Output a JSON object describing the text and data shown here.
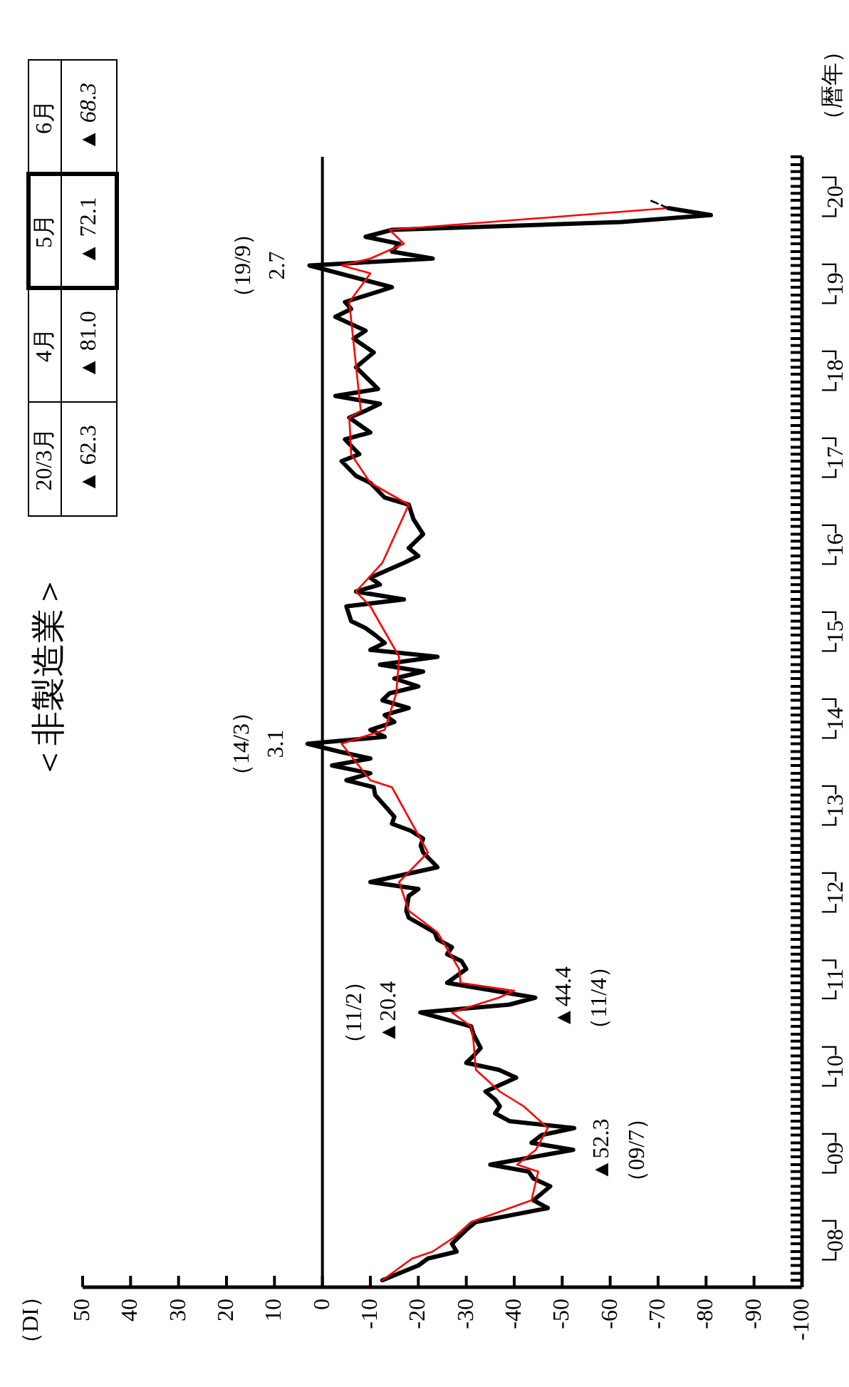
{
  "chart_data": {
    "type": "line",
    "title": "＜非製造業＞",
    "ylabel": "（暦年）",
    "xlim": [
      50,
      -100
    ],
    "ylim": [
      7.92,
      20.92
    ],
    "xticks": [
      50,
      40,
      30,
      20,
      10,
      0,
      -10,
      -20,
      -30,
      -40,
      -50,
      -60,
      -70,
      -80,
      -90,
      -100
    ],
    "yticks": [
      {
        "value": 8.46,
        "label": "└08┘"
      },
      {
        "value": 9.46,
        "label": "└09┘"
      },
      {
        "value": 10.46,
        "label": "└10┘"
      },
      {
        "value": 11.46,
        "label": "└11┘"
      },
      {
        "value": 12.46,
        "label": "└12┘"
      },
      {
        "value": 13.46,
        "label": "└13┘"
      },
      {
        "value": 14.46,
        "label": "└14┘"
      },
      {
        "value": 15.46,
        "label": "└15┘"
      },
      {
        "value": 16.46,
        "label": "└16┘"
      },
      {
        "value": 17.46,
        "label": "└17┘"
      },
      {
        "value": 18.46,
        "label": "└18┘"
      },
      {
        "value": 19.46,
        "label": "└19┘"
      },
      {
        "value": 20.46,
        "label": "└20┘"
      },
      {
        "value": 8,
        "label": null
      },
      {
        "value": 8.08,
        "label": null
      },
      {
        "value": 8.17,
        "label": null
      },
      {
        "value": 8.25,
        "label": null
      },
      {
        "value": 8.33,
        "label": null
      },
      {
        "value": 8.42,
        "label": null
      },
      {
        "value": 8.5,
        "label": null
      },
      {
        "value": 8.58,
        "label": null
      },
      {
        "value": 8.67,
        "label": null
      },
      {
        "value": 8.75,
        "label": null
      },
      {
        "value": 8.83,
        "label": null
      },
      {
        "value": 8.92,
        "label": null
      },
      {
        "value": 9,
        "label": null
      },
      {
        "value": 9.08,
        "label": null
      },
      {
        "value": 9.17,
        "label": null
      },
      {
        "value": 9.25,
        "label": null
      },
      {
        "value": 9.33,
        "label": null
      },
      {
        "value": 9.42,
        "label": null
      },
      {
        "value": 9.5,
        "label": null
      },
      {
        "value": 9.58,
        "label": null
      },
      {
        "value": 9.67,
        "label": null
      },
      {
        "value": 9.75,
        "label": null
      },
      {
        "value": 9.83,
        "label": null
      },
      {
        "value": 9.92,
        "label": null
      },
      {
        "value": 10,
        "label": null
      },
      {
        "value": 10.08,
        "label": null
      },
      {
        "value": 10.17,
        "label": null
      },
      {
        "value": 10.25,
        "label": null
      },
      {
        "value": 10.33,
        "label": null
      },
      {
        "value": 10.42,
        "label": null
      },
      {
        "value": 10.5,
        "label": null
      },
      {
        "value": 10.58,
        "label": null
      },
      {
        "value": 10.67,
        "label": null
      },
      {
        "value": 10.75,
        "label": null
      },
      {
        "value": 10.83,
        "label": null
      },
      {
        "value": 10.92,
        "label": null
      },
      {
        "value": 11,
        "label": null
      },
      {
        "value": 11.08,
        "label": null
      },
      {
        "value": 11.17,
        "label": null
      },
      {
        "value": 11.25,
        "label": null
      },
      {
        "value": 11.33,
        "label": null
      },
      {
        "value": 11.42,
        "label": null
      },
      {
        "value": 11.5,
        "label": null
      },
      {
        "value": 11.58,
        "label": null
      },
      {
        "value": 11.67,
        "label": null
      },
      {
        "value": 11.75,
        "label": null
      },
      {
        "value": 11.83,
        "label": null
      },
      {
        "value": 11.92,
        "label": null
      },
      {
        "value": 12,
        "label": null
      },
      {
        "value": 12.08,
        "label": null
      },
      {
        "value": 12.17,
        "label": null
      },
      {
        "value": 12.25,
        "label": null
      },
      {
        "value": 12.33,
        "label": null
      },
      {
        "value": 12.42,
        "label": null
      },
      {
        "value": 12.5,
        "label": null
      },
      {
        "value": 12.58,
        "label": null
      },
      {
        "value": 12.67,
        "label": null
      },
      {
        "value": 12.75,
        "label": null
      },
      {
        "value": 12.83,
        "label": null
      },
      {
        "value": 12.92,
        "label": null
      },
      {
        "value": 13,
        "label": null
      },
      {
        "value": 13.08,
        "label": null
      },
      {
        "value": 13.17,
        "label": null
      },
      {
        "value": 13.25,
        "label": null
      },
      {
        "value": 13.33,
        "label": null
      },
      {
        "value": 13.42,
        "label": null
      },
      {
        "value": 13.5,
        "label": null
      },
      {
        "value": 13.58,
        "label": null
      },
      {
        "value": 13.67,
        "label": null
      },
      {
        "value": 13.75,
        "label": null
      },
      {
        "value": 13.83,
        "label": null
      },
      {
        "value": 13.92,
        "label": null
      },
      {
        "value": 14,
        "label": null
      },
      {
        "value": 14.08,
        "label": null
      },
      {
        "value": 14.17,
        "label": null
      },
      {
        "value": 14.25,
        "label": null
      },
      {
        "value": 14.33,
        "label": null
      },
      {
        "value": 14.42,
        "label": null
      },
      {
        "value": 14.5,
        "label": null
      },
      {
        "value": 14.58,
        "label": null
      },
      {
        "value": 14.67,
        "label": null
      },
      {
        "value": 14.75,
        "label": null
      },
      {
        "value": 14.83,
        "label": null
      },
      {
        "value": 14.92,
        "label": null
      },
      {
        "value": 15,
        "label": null
      },
      {
        "value": 15.08,
        "label": null
      },
      {
        "value": 15.17,
        "label": null
      },
      {
        "value": 15.25,
        "label": null
      },
      {
        "value": 15.33,
        "label": null
      },
      {
        "value": 15.42,
        "label": null
      },
      {
        "value": 15.5,
        "label": null
      },
      {
        "value": 15.58,
        "label": null
      },
      {
        "value": 15.67,
        "label": null
      },
      {
        "value": 15.75,
        "label": null
      },
      {
        "value": 15.83,
        "label": null
      },
      {
        "value": 15.92,
        "label": null
      },
      {
        "value": 16,
        "label": null
      },
      {
        "value": 16.08,
        "label": null
      },
      {
        "value": 16.17,
        "label": null
      },
      {
        "value": 16.25,
        "label": null
      },
      {
        "value": 16.33,
        "label": null
      },
      {
        "value": 16.42,
        "label": null
      },
      {
        "value": 16.5,
        "label": null
      },
      {
        "value": 16.58,
        "label": null
      },
      {
        "value": 16.67,
        "label": null
      },
      {
        "value": 16.75,
        "label": null
      },
      {
        "value": 16.83,
        "label": null
      },
      {
        "value": 16.92,
        "label": null
      },
      {
        "value": 17,
        "label": null
      },
      {
        "value": 17.08,
        "label": null
      },
      {
        "value": 17.17,
        "label": null
      },
      {
        "value": 17.25,
        "label": null
      },
      {
        "value": 17.33,
        "label": null
      },
      {
        "value": 17.42,
        "label": null
      },
      {
        "value": 17.5,
        "label": null
      },
      {
        "value": 17.58,
        "label": null
      },
      {
        "value": 17.67,
        "label": null
      },
      {
        "value": 17.75,
        "label": null
      },
      {
        "value": 17.83,
        "label": null
      },
      {
        "value": 17.92,
        "label": null
      },
      {
        "value": 18,
        "label": null
      },
      {
        "value": 18.08,
        "label": null
      },
      {
        "value": 18.17,
        "label": null
      },
      {
        "value": 18.25,
        "label": null
      },
      {
        "value": 18.33,
        "label": null
      },
      {
        "value": 18.42,
        "label": null
      },
      {
        "value": 18.5,
        "label": null
      },
      {
        "value": 18.58,
        "label": null
      },
      {
        "value": 18.67,
        "label": null
      },
      {
        "value": 18.75,
        "label": null
      },
      {
        "value": 18.83,
        "label": null
      },
      {
        "value": 18.92,
        "label": null
      },
      {
        "value": 19,
        "label": null
      },
      {
        "value": 19.08,
        "label": null
      },
      {
        "value": 19.17,
        "label": null
      },
      {
        "value": 19.25,
        "label": null
      },
      {
        "value": 19.33,
        "label": null
      },
      {
        "value": 19.42,
        "label": null
      },
      {
        "value": 19.5,
        "label": null
      },
      {
        "value": 19.58,
        "label": null
      },
      {
        "value": 19.67,
        "label": null
      },
      {
        "value": 19.75,
        "label": null
      },
      {
        "value": 19.83,
        "label": null
      },
      {
        "value": 19.92,
        "label": null
      },
      {
        "value": 20,
        "label": null
      },
      {
        "value": 20.08,
        "label": null
      },
      {
        "value": 20.17,
        "label": null
      },
      {
        "value": 20.25,
        "label": null
      },
      {
        "value": 20.33,
        "label": null
      },
      {
        "value": 20.42,
        "label": null
      },
      {
        "value": 20.5,
        "label": null
      },
      {
        "value": 20.58,
        "label": null
      },
      {
        "value": 20.67,
        "label": null
      },
      {
        "value": 20.75,
        "label": null
      },
      {
        "value": 20.83,
        "label": null
      },
      {
        "value": 20.92,
        "label": null
      }
    ],
    "ref_lines": [
      {
        "axis": "x",
        "value": 0,
        "color": "#000000"
      }
    ],
    "series": [
      {
        "color": "#000000",
        "x": [
          -12.5,
          -16,
          -20,
          -22,
          -28,
          -27,
          -30,
          -32,
          -47,
          -44,
          -47.5,
          -44,
          -43,
          -35,
          -52.3,
          -43.6,
          -45.7,
          -52.5,
          -39,
          -36,
          -37,
          -36,
          -34,
          -40.4,
          -36.8,
          -30,
          -31.5,
          -33,
          -31.5,
          -31,
          -20.4,
          -39,
          -44.4,
          -26,
          -30,
          -29,
          -26,
          -27,
          -24,
          -23.4,
          -18,
          -17.5,
          -18,
          -20,
          -10,
          -24,
          -21,
          -20.5,
          -21,
          -18.4,
          -14.5,
          -15,
          -13.6,
          -11,
          -10.7,
          -5,
          -10,
          -2,
          -10,
          -3.5,
          3.1,
          -13,
          -10,
          -15,
          -13,
          -18,
          -12.5,
          -14,
          -20,
          -15,
          -21,
          -12,
          -24,
          -10,
          -13,
          -11,
          -9,
          -6,
          -5,
          -17,
          -7,
          -12,
          -10,
          -17,
          -20,
          -18,
          -21,
          -19,
          -18,
          -13,
          -11.6,
          -10,
          -7,
          -4,
          -7.7,
          -4.7,
          -10,
          -5.6,
          -9,
          -12,
          -2.7,
          -11.6,
          -7,
          -10.7,
          -6.5,
          -9,
          -2.7,
          -6,
          -4.7,
          -14.5,
          -9,
          2.7,
          -23,
          -14.5,
          -16,
          -9,
          -14.5,
          -62.3,
          -81.0,
          -72.1
        ],
        "values": [
          8,
          8.08,
          8.17,
          8.25,
          8.33,
          8.42,
          8.58,
          8.67,
          8.83,
          8.92,
          9.08,
          9.17,
          9.25,
          9.33,
          9.5,
          9.58,
          9.67,
          9.75,
          9.83,
          9.92,
          10,
          10.08,
          10.17,
          10.33,
          10.42,
          10.5,
          10.58,
          10.67,
          10.83,
          10.92,
          11.08,
          11.17,
          11.25,
          11.42,
          11.58,
          11.67,
          11.75,
          11.83,
          11.92,
          12,
          12.17,
          12.25,
          12.42,
          12.5,
          12.58,
          12.75,
          12.92,
          13,
          13.08,
          13.17,
          13.25,
          13.33,
          13.42,
          13.58,
          13.67,
          13.75,
          13.83,
          13.92,
          14,
          14.08,
          14.17,
          14.25,
          14.33,
          14.42,
          14.5,
          14.58,
          14.67,
          14.75,
          14.83,
          14.92,
          15,
          15.08,
          15.17,
          15.25,
          15.33,
          15.42,
          15.5,
          15.58,
          15.75,
          15.83,
          15.92,
          16,
          16.08,
          16.25,
          16.33,
          16.42,
          16.58,
          16.75,
          16.92,
          17,
          17.08,
          17.17,
          17.25,
          17.42,
          17.5,
          17.67,
          17.75,
          17.92,
          18,
          18.08,
          18.17,
          18.25,
          18.5,
          18.67,
          18.83,
          18.92,
          19.08,
          19.17,
          19.25,
          19.42,
          19.5,
          19.67,
          19.75,
          19.83,
          19.92,
          20,
          20.08,
          20.17,
          20.25,
          20.33
        ]
      },
      {
        "color": "#ff0000",
        "x": [
          -12.5,
          -18.7,
          -23,
          -27.6,
          -31,
          -43.6,
          -45,
          -40.6,
          -44.5,
          -47,
          -42,
          -37,
          -32,
          -31.5,
          -31,
          -27,
          -36.8,
          -40,
          -28.8,
          -28.5,
          -24,
          -18,
          -16,
          -22,
          -14.5,
          -10,
          -4,
          -13,
          -15.4,
          -16,
          -10,
          -7,
          -12.5,
          -18,
          -10,
          -6,
          -5.6,
          -8,
          -5.6,
          -10,
          -4,
          -10,
          -17,
          -14,
          -72
        ],
        "values": [
          8,
          8.25,
          8.33,
          8.5,
          8.67,
          8.92,
          9.25,
          9.33,
          9.5,
          9.75,
          10,
          10.17,
          10.42,
          10.75,
          10.92,
          11.08,
          11.25,
          11.33,
          11.42,
          11.58,
          12,
          12.25,
          12.58,
          12.92,
          13.67,
          13.75,
          14.17,
          14.33,
          14.75,
          15.17,
          15.75,
          15.92,
          16.25,
          16.92,
          17.17,
          17.5,
          17.92,
          18,
          19.25,
          19.58,
          19.67,
          19.75,
          19.92,
          20.08,
          20.33
        ]
      },
      {
        "color": "#000000",
        "line_style": "dashed",
        "x": [
          -72.1,
          -68.3
        ],
        "values": [
          20.33,
          20.42
        ]
      }
    ],
    "annotations": [
      {
        "text": "（14/3）\n3.1",
        "x": 3.1,
        "y": 14.17
      },
      {
        "text": "（19/9）\n2.7",
        "x": 2.7,
        "y": 19.67
      },
      {
        "text": "（11/2）\n▲20.4",
        "x": -20.4,
        "y": 11.08
      },
      {
        "text": "▲44.4\n（11/4）",
        "x": -44.4,
        "y": 11.25
      },
      {
        "text": "▲52.3\n（09/7）",
        "x": -52.3,
        "y": 9.5
      },
      "（DI）",
      "20/3月",
      "4月",
      "5月",
      "6月",
      "▲ 62.3",
      "▲ 81.0",
      "▲ 72.1",
      "▲ 68.3"
    ]
  }
}
